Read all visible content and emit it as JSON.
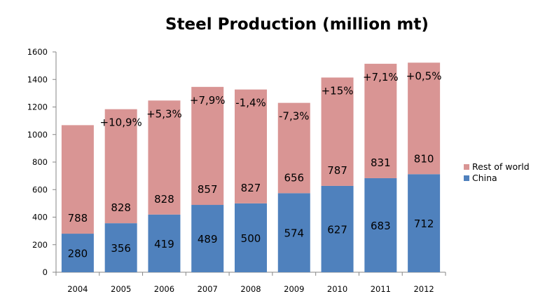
{
  "chart_data": {
    "type": "bar",
    "stacked": true,
    "title": "Steel Production (million mt)",
    "xlabel": "",
    "ylabel": "",
    "ylim": [
      0,
      1600
    ],
    "yticks": [
      0,
      200,
      400,
      600,
      800,
      1000,
      1200,
      1400,
      1600
    ],
    "grid": false,
    "legend_position": "right",
    "categories": [
      "2004",
      "2005",
      "2006",
      "2007",
      "2008",
      "2009",
      "2010",
      "2011",
      "2012"
    ],
    "series": [
      {
        "name": "China",
        "color": "#4f81bd",
        "values": [
          280,
          356,
          419,
          489,
          500,
          574,
          627,
          683,
          712
        ],
        "labels": [
          "280",
          "356",
          "419",
          "489",
          "500",
          "574",
          "627",
          "683",
          "712"
        ]
      },
      {
        "name": "Rest of world",
        "color": "#d99594",
        "values": [
          788,
          828,
          828,
          857,
          827,
          656,
          787,
          831,
          810
        ],
        "labels": [
          "788",
          "828",
          "828",
          "857",
          "827",
          "656",
          "787",
          "831",
          "810"
        ]
      }
    ],
    "annotations": [
      "",
      "+10,9%",
      "+5,3%",
      "+7,9%",
      "-1,4%",
      "-7,3%",
      "+15%",
      "+7,1%",
      "+0,5%"
    ]
  }
}
